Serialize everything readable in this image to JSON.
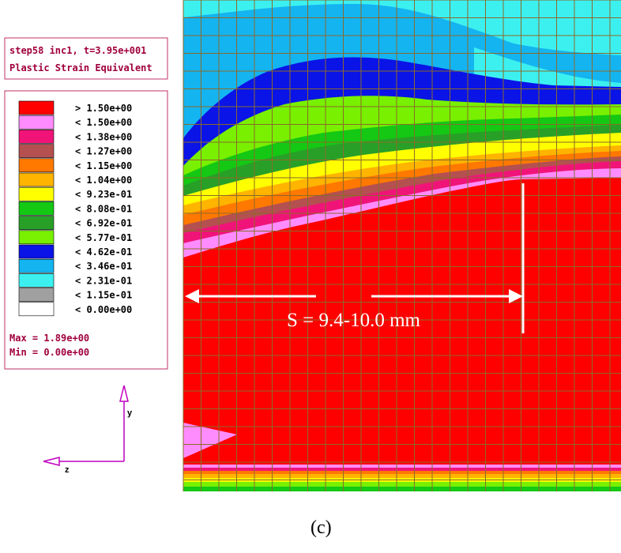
{
  "header": {
    "title": "step58 inc1, t=3.95e+001",
    "subtitle": "Plastic Strain Equivalent"
  },
  "legend": {
    "items": [
      {
        "label": "> 1.50e+00",
        "color": "#ff0000"
      },
      {
        "label": "< 1.50e+00",
        "color": "#ff8cff"
      },
      {
        "label": "< 1.38e+00",
        "color": "#f01478"
      },
      {
        "label": "< 1.27e+00",
        "color": "#b45050"
      },
      {
        "label": "< 1.15e+00",
        "color": "#ff7800"
      },
      {
        "label": "< 1.04e+00",
        "color": "#ffb400"
      },
      {
        "label": "< 9.23e-01",
        "color": "#ffff00"
      },
      {
        "label": "< 8.08e-01",
        "color": "#14c814"
      },
      {
        "label": "< 6.92e-01",
        "color": "#28a028"
      },
      {
        "label": "< 5.77e-01",
        "color": "#78f000"
      },
      {
        "label": "< 4.62e-01",
        "color": "#0a14e6"
      },
      {
        "label": "< 3.46e-01",
        "color": "#14b4f0"
      },
      {
        "label": "< 2.31e-01",
        "color": "#3cf0f0"
      },
      {
        "label": "< 1.15e-01",
        "color": "#a0a0a0"
      },
      {
        "label": "< 0.00e+00",
        "color": "#ffffff"
      }
    ],
    "max": "Max = 1.89e+00",
    "min": "Min = 0.00e+00"
  },
  "axes": {
    "y": "y",
    "z": "z"
  },
  "annotation": "S = 9.4-10.0 mm",
  "caption": "(c)"
}
